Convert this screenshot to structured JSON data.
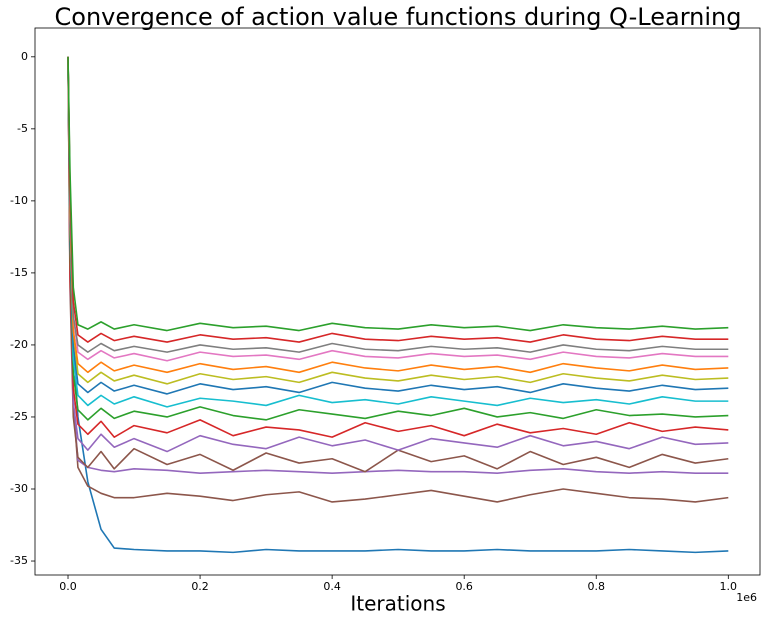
{
  "chart_data": {
    "type": "line",
    "title": "Convergence of action value functions during Q-Learning",
    "x_label": "Iterations",
    "x_offset_label": "1e6",
    "xlim": [
      -0.05,
      1.048
    ],
    "ylim": [
      -35.97,
      2.0
    ],
    "xticks": [
      {
        "value": 0,
        "label": "0.0"
      },
      0.2,
      0.4,
      0.6,
      0.8,
      {
        "value": 1,
        "label": "1.0"
      }
    ],
    "yticks": [
      0,
      -5,
      -10,
      -15,
      -20,
      -25,
      -30,
      -35
    ],
    "x": [
      0,
      0.003,
      0.008,
      0.015,
      0.03,
      0.05,
      0.07,
      0.1,
      0.15,
      0.2,
      0.25,
      0.3,
      0.35,
      0.4,
      0.45,
      0.5,
      0.55,
      0.6,
      0.65,
      0.7,
      0.75,
      0.8,
      0.85,
      0.9,
      0.95,
      1.0
    ],
    "series": [
      {
        "color": "#1f77b4",
        "values": [
          0,
          -10,
          -20,
          -25,
          -29.5,
          -32.8,
          -34.1,
          -34.2,
          -34.3,
          -34.3,
          -34.4,
          -34.2,
          -34.3,
          -34.3,
          -34.3,
          -34.2,
          -34.3,
          -34.3,
          -34.2,
          -34.3,
          -34.3,
          -34.3,
          -34.2,
          -34.3,
          -34.4,
          -34.3
        ]
      },
      {
        "color": "#8c564b",
        "values": [
          0,
          -14,
          -24,
          -28.5,
          -29.8,
          -30.3,
          -30.6,
          -30.6,
          -30.3,
          -30.5,
          -30.8,
          -30.4,
          -30.2,
          -30.9,
          -30.7,
          -30.4,
          -30.1,
          -30.5,
          -30.9,
          -30.4,
          -30.0,
          -30.3,
          -30.6,
          -30.7,
          -30.9,
          -30.6
        ]
      },
      {
        "color": "#9467bd",
        "values": [
          0,
          -14,
          -24,
          -28,
          -28.5,
          -28.7,
          -28.8,
          -28.6,
          -28.7,
          -28.9,
          -28.8,
          -28.7,
          -28.8,
          -28.9,
          -28.8,
          -28.7,
          -28.8,
          -28.8,
          -28.9,
          -28.7,
          -28.6,
          -28.8,
          -28.9,
          -28.8,
          -28.9,
          -28.9
        ]
      },
      {
        "color": "#8c564b",
        "values": [
          0,
          -16,
          -25,
          -27.8,
          -28.5,
          -27.4,
          -28.6,
          -27.2,
          -28.3,
          -27.6,
          -28.7,
          -27.5,
          -28.2,
          -27.9,
          -28.8,
          -27.3,
          -28.1,
          -27.7,
          -28.6,
          -27.4,
          -28.3,
          -27.8,
          -28.5,
          -27.6,
          -28.2,
          -27.9
        ]
      },
      {
        "color": "#9467bd",
        "values": [
          0,
          -15,
          -24,
          -26.5,
          -27.3,
          -26.2,
          -27.1,
          -26.5,
          -27.4,
          -26.3,
          -26.9,
          -27.2,
          -26.4,
          -27.0,
          -26.6,
          -27.3,
          -26.5,
          -26.8,
          -27.1,
          -26.3,
          -27.0,
          -26.7,
          -27.2,
          -26.4,
          -26.9,
          -26.8
        ]
      },
      {
        "color": "#d62728",
        "values": [
          0,
          -15,
          -23,
          -25.5,
          -26.2,
          -25.3,
          -26.4,
          -25.6,
          -26.1,
          -25.2,
          -26.3,
          -25.7,
          -25.9,
          -26.4,
          -25.4,
          -26.0,
          -25.6,
          -26.3,
          -25.5,
          -26.1,
          -25.8,
          -26.2,
          -25.4,
          -26.0,
          -25.7,
          -25.9
        ]
      },
      {
        "color": "#2ca02c",
        "values": [
          0,
          -13,
          -22,
          -24.5,
          -25.2,
          -24.4,
          -25.1,
          -24.6,
          -25.0,
          -24.3,
          -24.9,
          -25.2,
          -24.5,
          -24.8,
          -25.1,
          -24.6,
          -24.9,
          -24.4,
          -25.0,
          -24.7,
          -25.1,
          -24.5,
          -24.9,
          -24.8,
          -25.0,
          -24.9
        ]
      },
      {
        "color": "#17becf",
        "values": [
          0,
          -12,
          -21,
          -23.5,
          -24.2,
          -23.5,
          -24.1,
          -23.6,
          -24.3,
          -23.7,
          -23.9,
          -24.2,
          -23.5,
          -24.0,
          -23.8,
          -24.1,
          -23.6,
          -23.9,
          -24.2,
          -23.7,
          -24.0,
          -23.8,
          -24.1,
          -23.6,
          -23.9,
          -23.9
        ]
      },
      {
        "color": "#1f77b4",
        "values": [
          0,
          -12,
          -20,
          -22.7,
          -23.3,
          -22.6,
          -23.2,
          -22.8,
          -23.4,
          -22.7,
          -23.1,
          -22.9,
          -23.3,
          -22.6,
          -23.0,
          -23.2,
          -22.8,
          -23.1,
          -22.9,
          -23.3,
          -22.7,
          -23.0,
          -23.2,
          -22.8,
          -23.1,
          -23.0
        ]
      },
      {
        "color": "#bcbd22",
        "values": [
          0,
          -11,
          -19,
          -22,
          -22.6,
          -21.9,
          -22.5,
          -22.1,
          -22.7,
          -22.0,
          -22.4,
          -22.2,
          -22.6,
          -21.9,
          -22.3,
          -22.5,
          -22.1,
          -22.4,
          -22.2,
          -22.6,
          -22.0,
          -22.3,
          -22.5,
          -22.1,
          -22.4,
          -22.3
        ]
      },
      {
        "color": "#ff7f0e",
        "values": [
          0,
          -11,
          -19,
          -21.3,
          -21.9,
          -21.2,
          -21.8,
          -21.4,
          -21.9,
          -21.3,
          -21.7,
          -21.5,
          -21.9,
          -21.2,
          -21.6,
          -21.8,
          -21.4,
          -21.7,
          -21.5,
          -21.9,
          -21.3,
          -21.6,
          -21.8,
          -21.4,
          -21.7,
          -21.6
        ]
      },
      {
        "color": "#e377c2",
        "values": [
          0,
          -10,
          -18,
          -20.5,
          -21.0,
          -20.4,
          -20.9,
          -20.6,
          -21.1,
          -20.5,
          -20.8,
          -20.7,
          -21.0,
          -20.4,
          -20.8,
          -20.9,
          -20.6,
          -20.8,
          -20.7,
          -21.0,
          -20.5,
          -20.8,
          -20.9,
          -20.6,
          -20.8,
          -20.8
        ]
      },
      {
        "color": "#7f7f7f",
        "values": [
          0,
          -10,
          -18,
          -20,
          -20.5,
          -19.9,
          -20.4,
          -20.1,
          -20.5,
          -20.0,
          -20.3,
          -20.2,
          -20.5,
          -19.9,
          -20.3,
          -20.4,
          -20.1,
          -20.3,
          -20.2,
          -20.5,
          -20.0,
          -20.3,
          -20.4,
          -20.1,
          -20.3,
          -20.3
        ]
      },
      {
        "color": "#d62728",
        "values": [
          0,
          -9,
          -17,
          -19.3,
          -19.8,
          -19.2,
          -19.7,
          -19.4,
          -19.8,
          -19.3,
          -19.6,
          -19.5,
          -19.8,
          -19.2,
          -19.6,
          -19.7,
          -19.4,
          -19.6,
          -19.5,
          -19.8,
          -19.3,
          -19.6,
          -19.7,
          -19.4,
          -19.6,
          -19.6
        ]
      },
      {
        "color": "#2ca02c",
        "values": [
          0,
          -8,
          -16,
          -18.6,
          -18.9,
          -18.4,
          -18.9,
          -18.6,
          -19.0,
          -18.5,
          -18.8,
          -18.7,
          -19.0,
          -18.5,
          -18.8,
          -18.9,
          -18.6,
          -18.8,
          -18.7,
          -19.0,
          -18.6,
          -18.8,
          -18.9,
          -18.7,
          -18.9,
          -18.8
        ]
      }
    ]
  }
}
